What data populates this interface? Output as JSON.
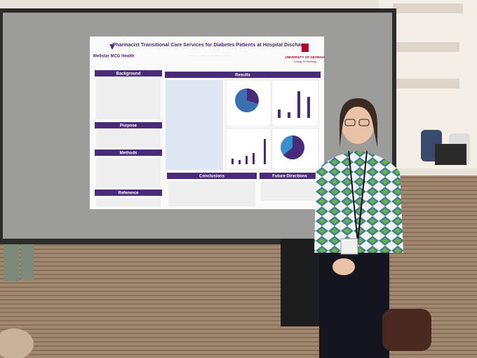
{
  "poster": {
    "title": "Pharmacist Transitional Care Services for Diabetes Patients at Hospital Discharge",
    "logo_left": "Wellstar MCG Health",
    "logo_right": "UNIVERSITY OF GEORGIA",
    "logo_right_sub": "College of Pharmacy",
    "sections_left": [
      "Background",
      "Purpose",
      "Methods",
      "Reference"
    ],
    "results": "Results",
    "sections_bottom": [
      "Conclusions",
      "Future Directions"
    ]
  }
}
